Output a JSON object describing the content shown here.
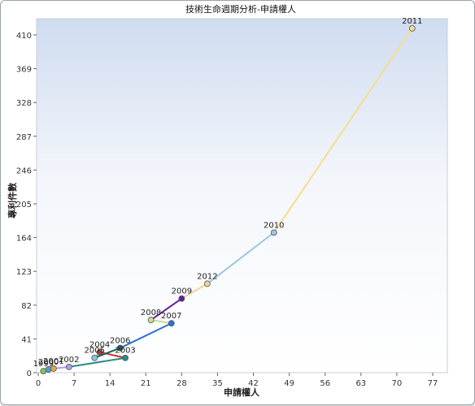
{
  "chart_data": {
    "type": "scatter",
    "title": "技術生命週期分析-申請權人",
    "xlabel": "申請權人",
    "ylabel": "專利件數",
    "xlim": [
      0,
      77
    ],
    "ylim": [
      0,
      410
    ],
    "xticks": [
      "0",
      "7",
      "14",
      "21",
      "28",
      "35",
      "42",
      "49",
      "56",
      "63",
      "70",
      "77"
    ],
    "yticks": [
      "0",
      "41",
      "82",
      "123",
      "164",
      "205",
      "246",
      "287",
      "328",
      "369",
      "410"
    ],
    "grid": false,
    "legend": "none",
    "points": [
      {
        "year": "1999",
        "x": 1,
        "y": 2,
        "color": "#7ec850"
      },
      {
        "year": "2000",
        "x": 2,
        "y": 4,
        "color": "#4aa3d6"
      },
      {
        "year": "2001",
        "x": 3,
        "y": 5,
        "color": "#f0a830"
      },
      {
        "year": "2002",
        "x": 6,
        "y": 7,
        "color": "#b79ae6"
      },
      {
        "year": "2003",
        "x": 17,
        "y": 18,
        "color": "#2a8a8a"
      },
      {
        "year": "2004",
        "x": 12,
        "y": 25,
        "color": "#c0392b"
      },
      {
        "year": "2005",
        "x": 11,
        "y": 18,
        "color": "#86c9d8"
      },
      {
        "year": "2006",
        "x": 16,
        "y": 30,
        "color": "#1e5c5c"
      },
      {
        "year": "2007",
        "x": 26,
        "y": 60,
        "color": "#2f6fd6"
      },
      {
        "year": "2008",
        "x": 22,
        "y": 64,
        "color": "#c8e08a"
      },
      {
        "year": "2009",
        "x": 28,
        "y": 90,
        "color": "#6a1b9a"
      },
      {
        "year": "2012",
        "x": 33,
        "y": 108,
        "color": "#f6d28c"
      },
      {
        "year": "2010",
        "x": 46,
        "y": 170,
        "color": "#9cc7dd"
      },
      {
        "year": "2011",
        "x": 73,
        "y": 418,
        "color": "#f7dc8c"
      }
    ]
  }
}
